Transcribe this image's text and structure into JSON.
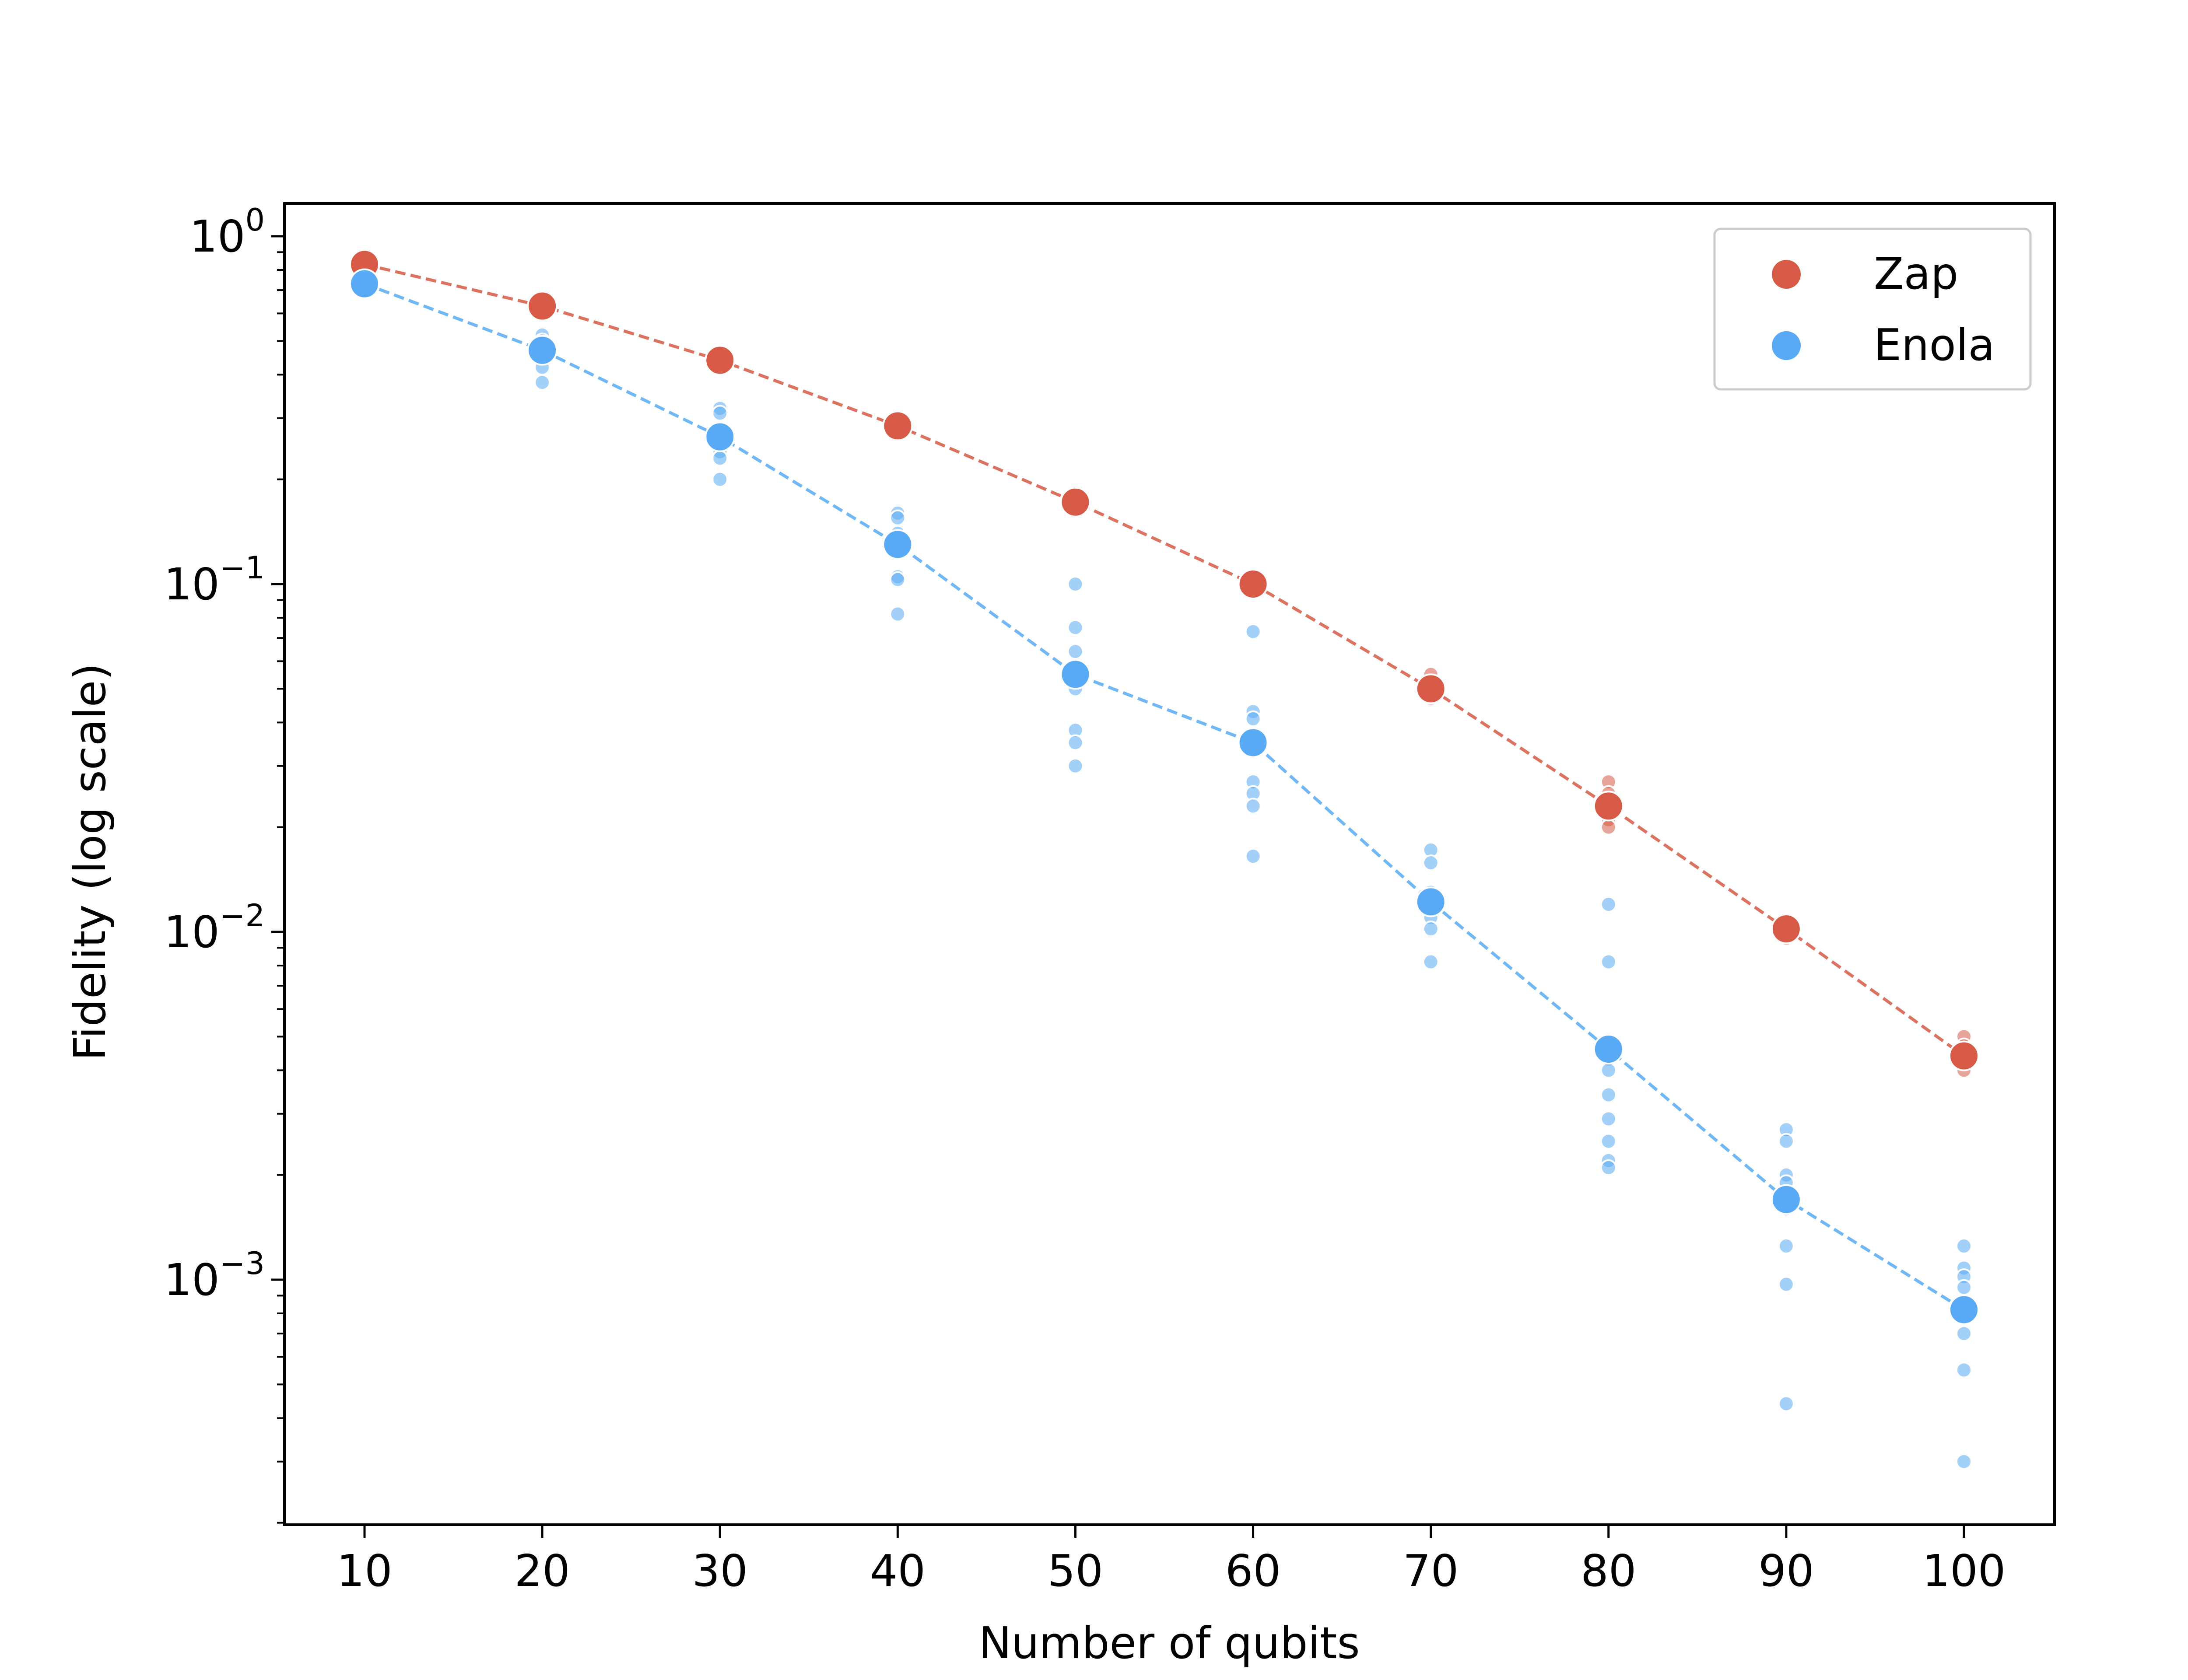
{
  "chart_data": {
    "type": "scatter",
    "title": "",
    "xlabel": "Number of qubits",
    "ylabel": "Fidelity (log scale)",
    "xscale": "linear",
    "yscale": "log",
    "xlim": [
      5.5,
      104.5
    ],
    "ylim": [
      0.00019,
      1.15
    ],
    "x_ticks": [
      10,
      20,
      30,
      40,
      50,
      60,
      70,
      80,
      90,
      100
    ],
    "y_ticks": [
      {
        "value": 1,
        "base": "10",
        "exp": "0"
      },
      {
        "value": 0.1,
        "base": "10",
        "exp": "−1"
      },
      {
        "value": 0.01,
        "base": "10",
        "exp": "−2"
      },
      {
        "value": 0.001,
        "base": "10",
        "exp": "−3"
      }
    ],
    "grid": false,
    "legend_position": "top-right",
    "series": [
      {
        "name": "Zap",
        "color": "#d65a45",
        "x": [
          10,
          20,
          30,
          40,
          50,
          60,
          70,
          80,
          90,
          100
        ],
        "y": [
          0.83,
          0.63,
          0.44,
          0.285,
          0.172,
          0.1,
          0.05,
          0.023,
          0.0102,
          0.0044
        ],
        "samples": [
          [
            10,
            0.85
          ],
          [
            20,
            0.64
          ],
          [
            30,
            0.45
          ],
          [
            40,
            0.29
          ],
          [
            50,
            0.182
          ],
          [
            50,
            0.165
          ],
          [
            60,
            0.104
          ],
          [
            60,
            0.095
          ],
          [
            70,
            0.055
          ],
          [
            70,
            0.052
          ],
          [
            70,
            0.047
          ],
          [
            80,
            0.027
          ],
          [
            80,
            0.025
          ],
          [
            80,
            0.021
          ],
          [
            80,
            0.02
          ],
          [
            90,
            0.0108
          ],
          [
            90,
            0.0096
          ],
          [
            100,
            0.005
          ],
          [
            100,
            0.0047
          ],
          [
            100,
            0.004
          ]
        ]
      },
      {
        "name": "Enola",
        "color": "#57aaf3",
        "x": [
          10,
          20,
          30,
          40,
          50,
          60,
          70,
          80,
          90,
          100
        ],
        "y": [
          0.73,
          0.47,
          0.265,
          0.13,
          0.055,
          0.035,
          0.0122,
          0.0046,
          0.0017,
          0.00082
        ],
        "samples": [
          [
            10,
            0.75
          ],
          [
            10,
            0.71
          ],
          [
            20,
            0.52
          ],
          [
            20,
            0.5
          ],
          [
            20,
            0.45
          ],
          [
            20,
            0.42
          ],
          [
            20,
            0.38
          ],
          [
            30,
            0.32
          ],
          [
            30,
            0.31
          ],
          [
            30,
            0.28
          ],
          [
            30,
            0.25
          ],
          [
            30,
            0.24
          ],
          [
            30,
            0.23
          ],
          [
            30,
            0.2
          ],
          [
            40,
            0.16
          ],
          [
            40,
            0.155
          ],
          [
            40,
            0.14
          ],
          [
            40,
            0.125
          ],
          [
            40,
            0.105
          ],
          [
            40,
            0.103
          ],
          [
            40,
            0.082
          ],
          [
            50,
            0.1
          ],
          [
            50,
            0.075
          ],
          [
            50,
            0.064
          ],
          [
            50,
            0.05
          ],
          [
            50,
            0.038
          ],
          [
            50,
            0.035
          ],
          [
            50,
            0.03
          ],
          [
            60,
            0.073
          ],
          [
            60,
            0.043
          ],
          [
            60,
            0.041
          ],
          [
            60,
            0.033
          ],
          [
            60,
            0.027
          ],
          [
            60,
            0.025
          ],
          [
            60,
            0.023
          ],
          [
            60,
            0.0165
          ],
          [
            70,
            0.0172
          ],
          [
            70,
            0.0158
          ],
          [
            70,
            0.013
          ],
          [
            70,
            0.011
          ],
          [
            70,
            0.0102
          ],
          [
            70,
            0.0082
          ],
          [
            80,
            0.012
          ],
          [
            80,
            0.0082
          ],
          [
            80,
            0.0048
          ],
          [
            80,
            0.0043
          ],
          [
            80,
            0.004
          ],
          [
            80,
            0.0034
          ],
          [
            80,
            0.0029
          ],
          [
            80,
            0.0025
          ],
          [
            80,
            0.0022
          ],
          [
            80,
            0.0021
          ],
          [
            90,
            0.0027
          ],
          [
            90,
            0.0025
          ],
          [
            90,
            0.002
          ],
          [
            90,
            0.0019
          ],
          [
            90,
            0.0016
          ],
          [
            90,
            0.00125
          ],
          [
            90,
            0.00097
          ],
          [
            90,
            0.00044
          ],
          [
            100,
            0.00125
          ],
          [
            100,
            0.00108
          ],
          [
            100,
            0.00102
          ],
          [
            100,
            0.00095
          ],
          [
            100,
            0.0008
          ],
          [
            100,
            0.0007
          ],
          [
            100,
            0.00055
          ],
          [
            100,
            0.0003
          ]
        ]
      }
    ]
  }
}
